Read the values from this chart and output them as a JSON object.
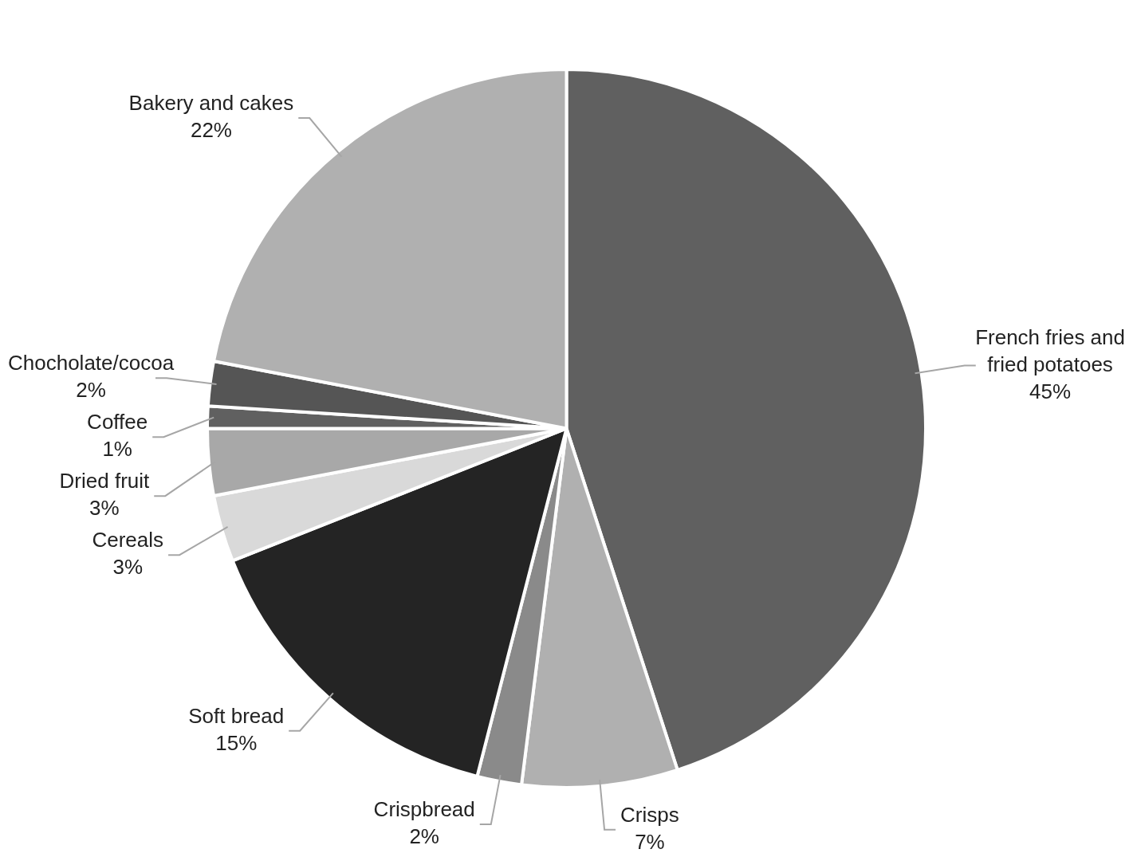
{
  "chart_data": {
    "type": "pie",
    "categories": [
      "French fries and fried potatoes",
      "Crisps",
      "Crispbread",
      "Soft bread",
      "Cereals",
      "Dried fruit",
      "Coffee",
      "Chocholate/cocoa",
      "Bakery and cakes"
    ],
    "values": [
      45,
      7,
      2,
      15,
      3,
      3,
      1,
      2,
      22
    ],
    "value_labels": [
      "45%",
      "7%",
      "2%",
      "15%",
      "3%",
      "3%",
      "1%",
      "2%",
      "22%"
    ],
    "colors": [
      "#606060",
      "#b0b0b0",
      "#8a8a8a",
      "#242424",
      "#d9d9d9",
      "#a8a8a8",
      "#606060",
      "#555555",
      "#b0b0b0"
    ],
    "legend": false
  }
}
